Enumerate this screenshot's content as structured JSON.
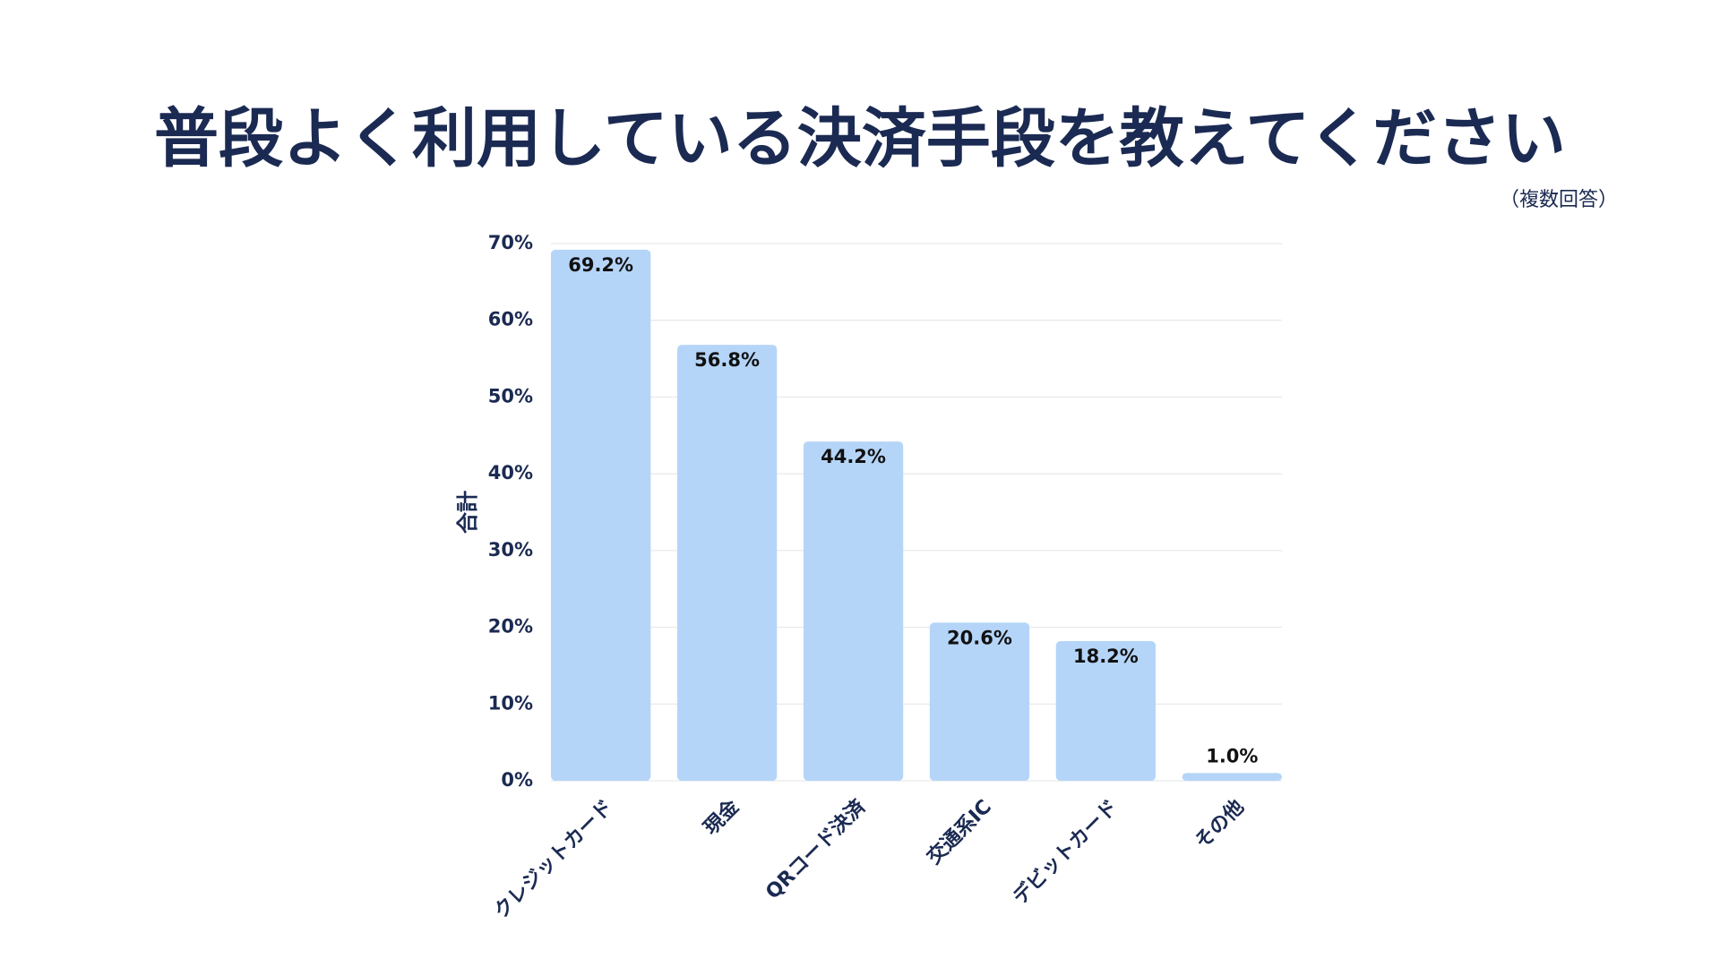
{
  "chart_data": {
    "type": "bar",
    "title": "普段よく利用している決済手段を教えてください",
    "subtitle": "（複数回答）",
    "y_label": "合計",
    "categories": [
      "クレジットカード",
      "現金",
      "QRコード決済",
      "交通系IC",
      "デビットカード",
      "その他"
    ],
    "values": [
      69.2,
      56.8,
      44.2,
      20.6,
      18.2,
      1.0
    ],
    "value_labels": [
      "69.2%",
      "56.8%",
      "44.2%",
      "20.6%",
      "18.2%",
      "1.0%"
    ],
    "color": "#b5d5f8",
    "ylim": [
      0,
      70
    ],
    "yticks": [
      {
        "value": 0,
        "label": "0%"
      },
      {
        "value": 10,
        "label": "10%"
      },
      {
        "value": 20,
        "label": "20%"
      },
      {
        "value": 30,
        "label": "30%"
      },
      {
        "value": 40,
        "label": "40%"
      },
      {
        "value": 50,
        "label": "50%"
      },
      {
        "value": 60,
        "label": "60%"
      },
      {
        "value": 70,
        "label": "70%"
      }
    ],
    "grid": true
  }
}
